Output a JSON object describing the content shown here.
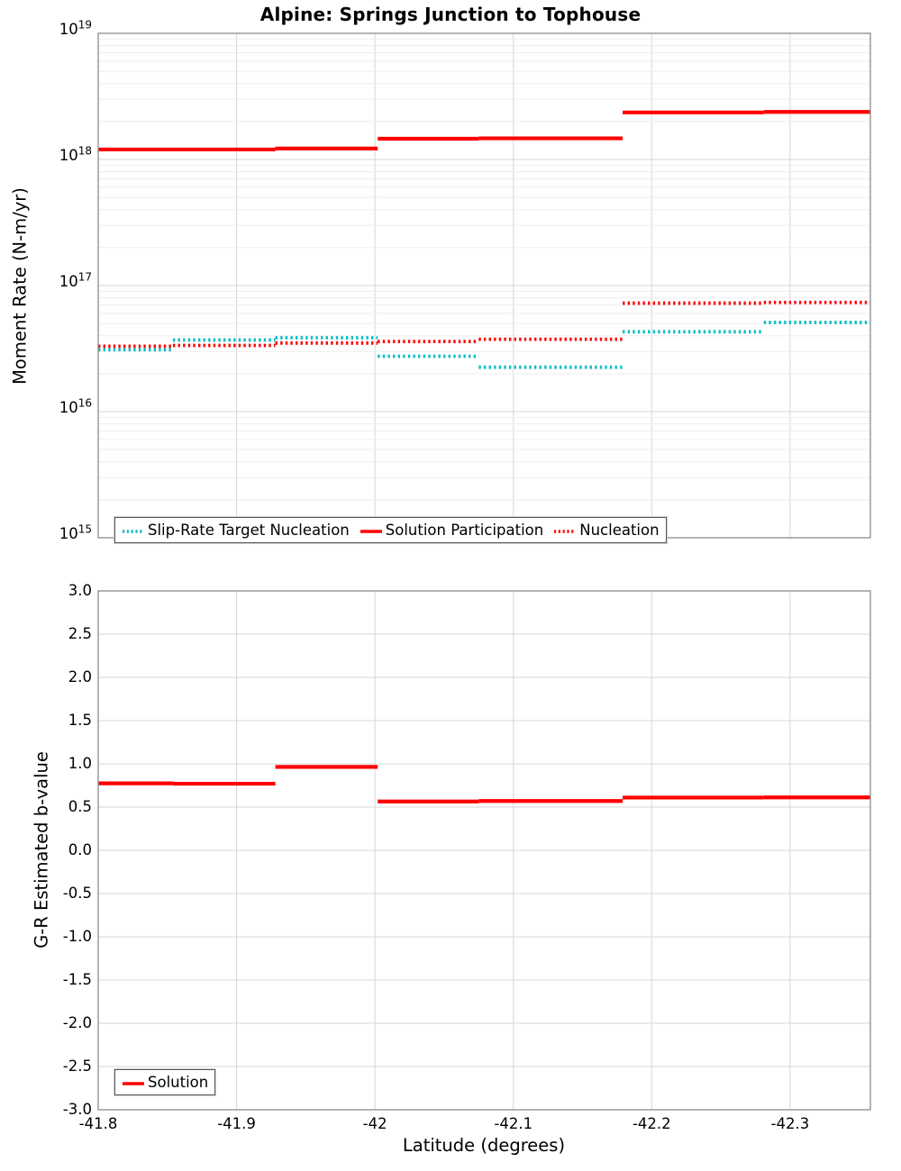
{
  "title": "Alpine: Springs Junction to Tophouse",
  "colors": {
    "solution_red": "#ff0000",
    "target_teal": "#0dbdc6",
    "grid_major": "#d7d7d7",
    "grid_minor": "#ededed",
    "spine": "#8c8c8c"
  },
  "x_axis": {
    "label": "Latitude (degrees)",
    "tick_labels": [
      "-41.8",
      "-41.9",
      "-42",
      "-42.1",
      "-42.2",
      "-42.3"
    ],
    "tick_values": [
      -41.8,
      -41.9,
      -42.0,
      -42.1,
      -42.2,
      -42.3
    ],
    "range": [
      -41.8,
      -42.358
    ],
    "direction": "decreasing"
  },
  "top_chart": {
    "ylabel": "Moment Rate (N-m/yr)",
    "yscale": "log",
    "ytick_exponents": [
      19,
      18,
      17,
      16,
      15
    ],
    "legend": [
      {
        "label": "Slip-Rate Target Nucleation",
        "color": "#0dbdc6",
        "style": "dotted"
      },
      {
        "label": "Solution Participation",
        "color": "#ff0000",
        "style": "solid"
      },
      {
        "label": "Nucleation",
        "color": "#ff0000",
        "style": "dotted"
      }
    ]
  },
  "bottom_chart": {
    "ylabel": "G-R Estimated b-value",
    "ytick_labels": [
      "3.0",
      "2.5",
      "2.0",
      "1.5",
      "1.0",
      "0.5",
      "0.0",
      "-0.5",
      "-1.0",
      "-1.5",
      "-2.0",
      "-2.5",
      "-3.0"
    ],
    "ytick_values": [
      3.0,
      2.5,
      2.0,
      1.5,
      1.0,
      0.5,
      0.0,
      -0.5,
      -1.0,
      -1.5,
      -2.0,
      -2.5,
      -3.0
    ],
    "legend": [
      {
        "label": "Solution",
        "color": "#ff0000",
        "style": "solid"
      }
    ]
  },
  "chart_data": [
    {
      "type": "line",
      "subplot": "top",
      "title": "Alpine: Springs Junction to Tophouse",
      "xlabel": "Latitude (degrees)",
      "ylabel": "Moment Rate (N-m/yr)",
      "yscale": "log",
      "ylim": [
        1000000000000000.0,
        1e+19
      ],
      "xlim": [
        -41.8,
        -42.358
      ],
      "grid": true,
      "legend_position": "lower center",
      "x_boundaries": [
        -41.8,
        -41.854,
        -41.928,
        -42.002,
        -42.075,
        -42.179,
        -42.281,
        -42.358
      ],
      "series": [
        {
          "name": "Slip-Rate Target Nucleation",
          "style": "dotted",
          "color": "#0dbdc6",
          "values": [
            3.1e+16,
            3.7e+16,
            3.85e+16,
            2.75e+16,
            2.25e+16,
            4.3e+16,
            5.1e+16
          ]
        },
        {
          "name": "Solution Participation",
          "style": "solid",
          "color": "#ff0000",
          "values": [
            1.2e+18,
            1.2e+18,
            1.22e+18,
            1.46e+18,
            1.47e+18,
            2.36e+18,
            2.38e+18
          ]
        },
        {
          "name": "Nucleation",
          "style": "dotted",
          "color": "#ff0000",
          "values": [
            3.3e+16,
            3.35e+16,
            3.5e+16,
            3.6e+16,
            3.75e+16,
            7.25e+16,
            7.35e+16
          ]
        }
      ]
    },
    {
      "type": "line",
      "subplot": "bottom",
      "title": "",
      "xlabel": "Latitude (degrees)",
      "ylabel": "G-R Estimated b-value",
      "yscale": "linear",
      "ylim": [
        -3.0,
        3.0
      ],
      "xlim": [
        -41.8,
        -42.358
      ],
      "grid": true,
      "legend_position": "lower left",
      "x_boundaries": [
        -41.8,
        -41.854,
        -41.928,
        -42.002,
        -42.075,
        -42.179,
        -42.281,
        -42.358
      ],
      "series": [
        {
          "name": "Solution",
          "style": "solid",
          "color": "#ff0000",
          "values": [
            0.775,
            0.77,
            0.965,
            0.565,
            0.57,
            0.61,
            0.612
          ]
        }
      ]
    }
  ]
}
